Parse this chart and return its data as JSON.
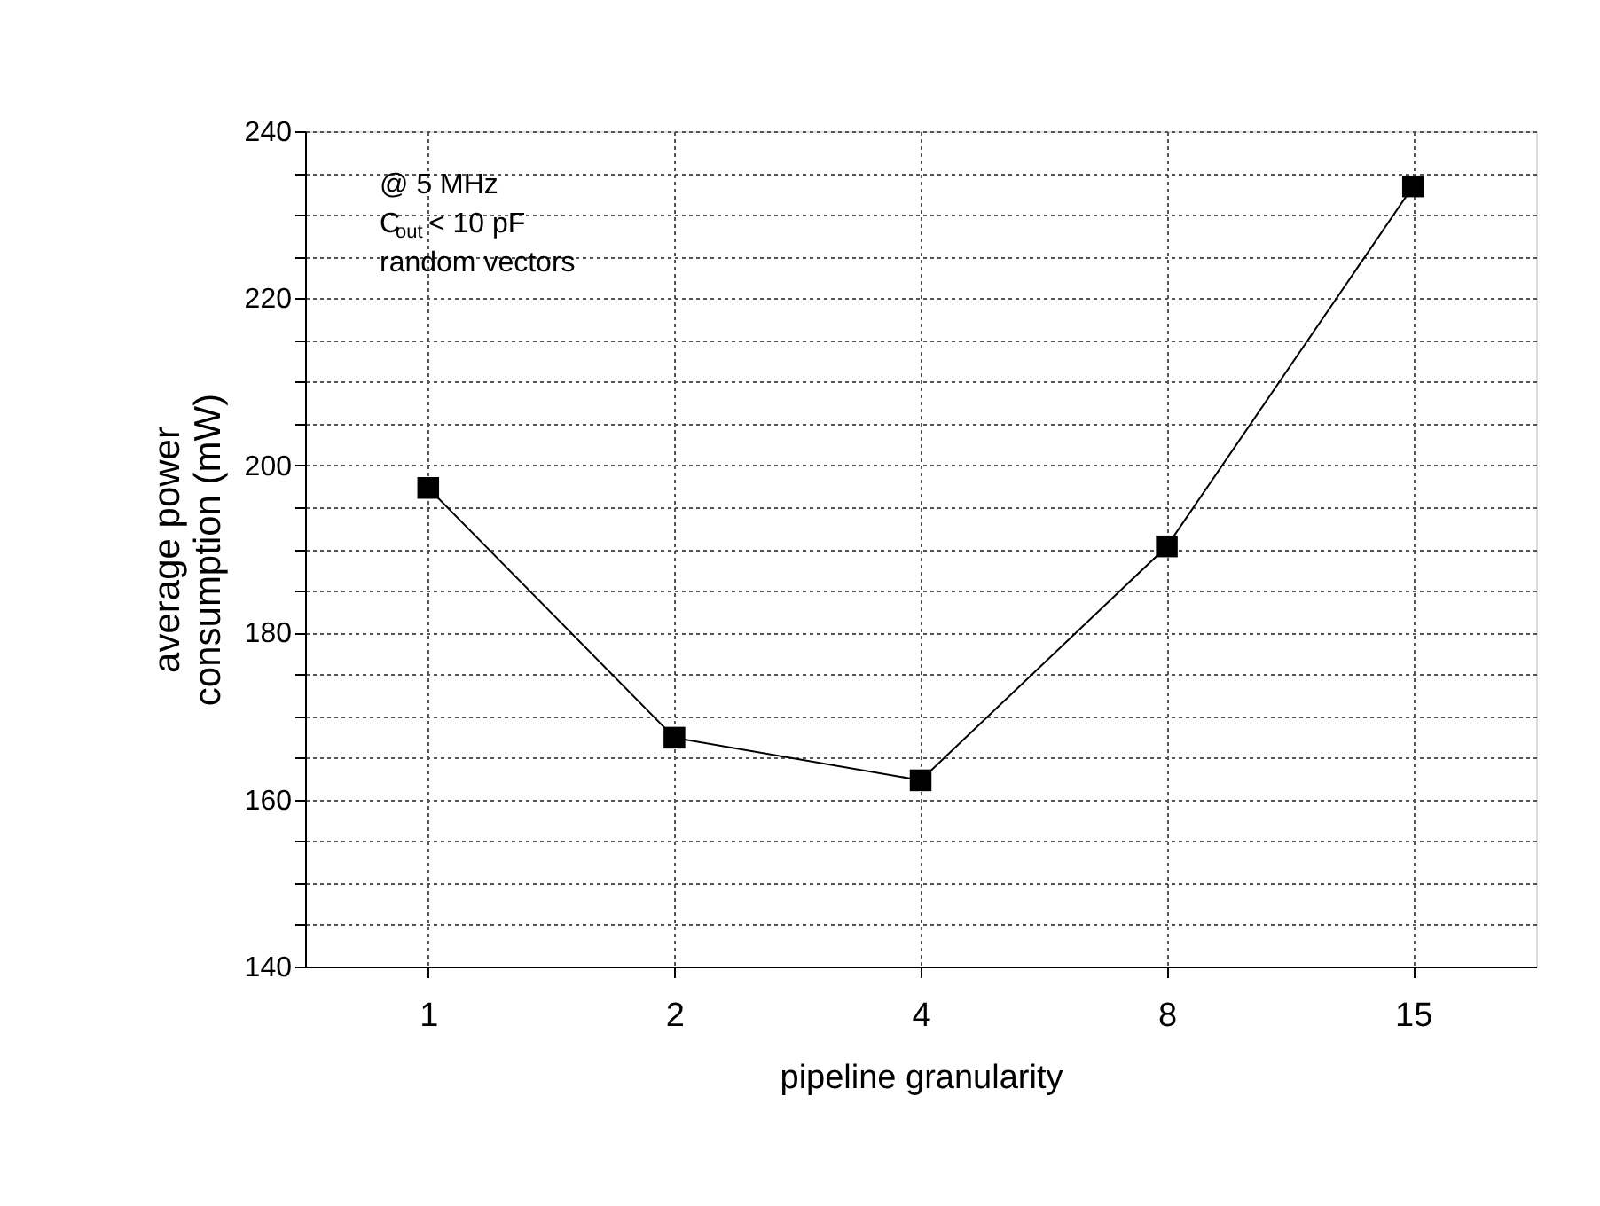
{
  "chart_data": {
    "type": "line",
    "xlabel": "pipeline granularity",
    "ylabel": "average power\nconsumption (mW)",
    "categories": [
      "1",
      "2",
      "4",
      "8",
      "15"
    ],
    "series": [
      {
        "color": "#000000",
        "values": [
          197.3,
          167.4,
          162.3,
          190.3,
          233.4
        ]
      }
    ],
    "ylim": [
      140,
      240
    ],
    "yticks": [
      140,
      {
        "value": 145,
        "label": null
      },
      {
        "value": 150,
        "label": null
      },
      {
        "value": 155,
        "label": null
      },
      160,
      {
        "value": 165,
        "label": null
      },
      {
        "value": 170,
        "label": null
      },
      {
        "value": 175,
        "label": null
      },
      180,
      {
        "value": 185,
        "label": null
      },
      {
        "value": 190,
        "label": null
      },
      {
        "value": 195,
        "label": null
      },
      200,
      {
        "value": 205,
        "label": null
      },
      {
        "value": 210,
        "label": null
      },
      {
        "value": 215,
        "label": null
      },
      220,
      {
        "value": 225,
        "label": null
      },
      {
        "value": 230,
        "label": null
      },
      {
        "value": 235,
        "label": null
      },
      240
    ],
    "grid": true,
    "marker": "square",
    "line_style": "solid",
    "annotations": [
      "@ 5 MHz",
      "C$_{out}$ < 10 pF",
      "random vectors"
    ]
  }
}
